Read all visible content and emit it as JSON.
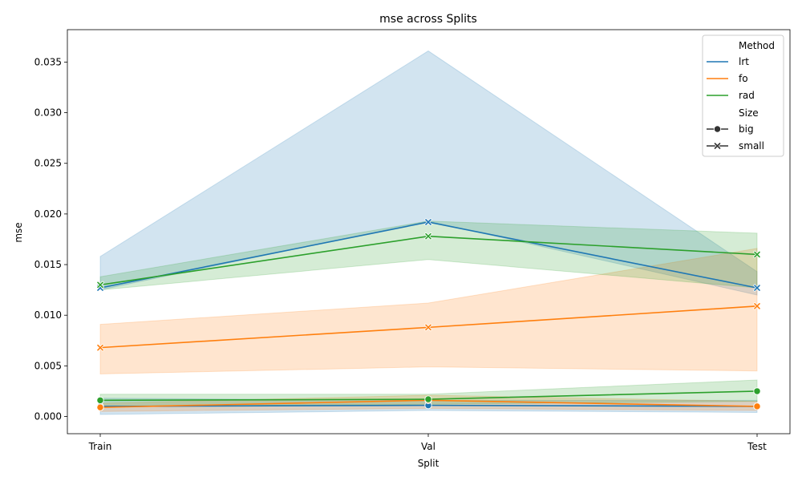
{
  "chart_data": {
    "type": "line",
    "title": "mse across Splits",
    "xlabel": "Split",
    "ylabel": "mse",
    "categories": [
      "Train",
      "Val",
      "Test"
    ],
    "ylim": [
      -0.0017,
      0.0382
    ],
    "yticks": [
      0.0,
      0.005,
      0.01,
      0.015,
      0.02,
      0.025,
      0.03,
      0.035
    ],
    "ytick_labels": [
      "0.000",
      "0.005",
      "0.010",
      "0.015",
      "0.020",
      "0.025",
      "0.030",
      "0.035"
    ],
    "colors": {
      "lrt": "#1f77b4",
      "fo": "#ff7f0e",
      "rad": "#2ca02c"
    },
    "legend": {
      "position": "top-right",
      "hue_title": "Method",
      "hue_entries": [
        "lrt",
        "fo",
        "rad"
      ],
      "style_title": "Size",
      "style_entries": [
        {
          "label": "big",
          "marker": "circle"
        },
        {
          "label": "small",
          "marker": "x"
        }
      ]
    },
    "series": [
      {
        "method": "lrt",
        "size": "small",
        "marker": "x",
        "values": [
          0.0127,
          0.0192,
          0.0127
        ],
        "ci_low": [
          0.0125,
          0.0193,
          0.012
        ],
        "ci_high": [
          0.0158,
          0.0361,
          0.0143
        ]
      },
      {
        "method": "fo",
        "size": "small",
        "marker": "x",
        "values": [
          0.0068,
          0.0088,
          0.0109
        ],
        "ci_low": [
          0.0042,
          0.0049,
          0.0045
        ],
        "ci_high": [
          0.0091,
          0.0112,
          0.0166
        ]
      },
      {
        "method": "rad",
        "size": "small",
        "marker": "x",
        "values": [
          0.013,
          0.0178,
          0.016
        ],
        "ci_low": [
          0.0125,
          0.0155,
          0.0127
        ],
        "ci_high": [
          0.0138,
          0.0193,
          0.0181
        ]
      },
      {
        "method": "lrt",
        "size": "big",
        "marker": "circle",
        "values": [
          0.001,
          0.0011,
          0.001
        ],
        "ci_low": [
          0.0002,
          0.0006,
          0.0004
        ],
        "ci_high": [
          0.0018,
          0.0016,
          0.0016
        ]
      },
      {
        "method": "fo",
        "size": "big",
        "marker": "circle",
        "values": [
          0.0009,
          0.0016,
          0.001
        ],
        "ci_low": [
          0.0005,
          0.0008,
          0.0006
        ],
        "ci_high": [
          0.0013,
          0.0021,
          0.0015
        ]
      },
      {
        "method": "rad",
        "size": "big",
        "marker": "circle",
        "values": [
          0.0016,
          0.0017,
          0.0025
        ],
        "ci_low": [
          0.001,
          0.0012,
          0.0015
        ],
        "ci_high": [
          0.0022,
          0.0022,
          0.0036
        ]
      }
    ]
  }
}
